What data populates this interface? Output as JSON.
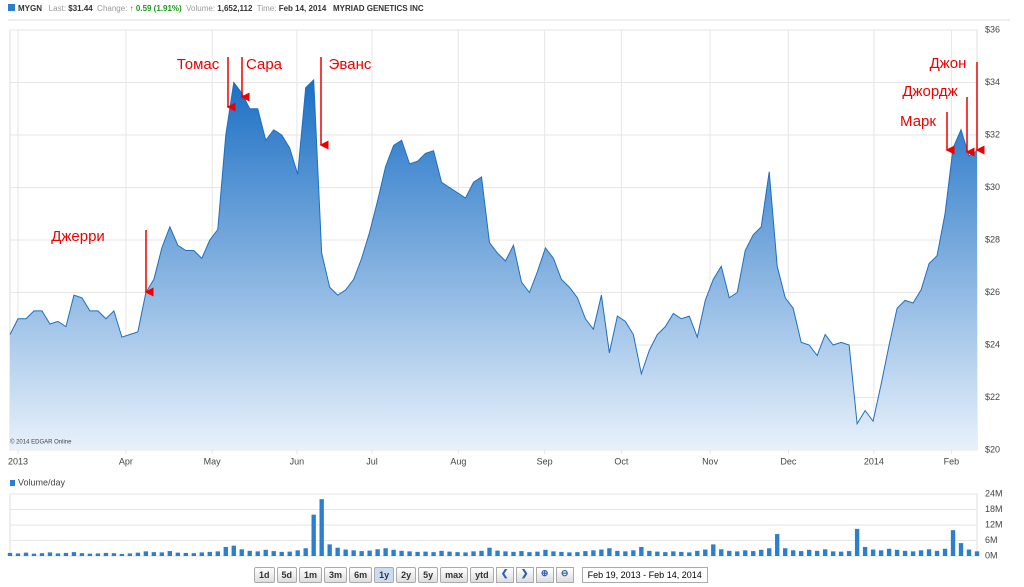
{
  "header": {
    "ticker": "MYGN",
    "last_label": "Last:",
    "last": "$31.44",
    "change_label": "Change:",
    "change": "0.59 (1.91%)",
    "volume_label": "Volume:",
    "volume": "1,652,112",
    "time_label": "Time:",
    "time": "Feb 14, 2014",
    "company": "MYRIAD GENETICS INC"
  },
  "chart_data": [
    {
      "type": "area",
      "color": "#2a7fd0",
      "xlim": [
        0,
        121
      ],
      "ylim": [
        20,
        36
      ],
      "yticks": [
        {
          "value": 20,
          "label": "$20"
        },
        {
          "value": 22,
          "label": "$22"
        },
        {
          "value": 24,
          "label": "$24"
        },
        {
          "value": 26,
          "label": "$26"
        },
        {
          "value": 28,
          "label": "$28"
        },
        {
          "value": 30,
          "label": "$30"
        },
        {
          "value": 32,
          "label": "$32"
        },
        {
          "value": 34,
          "label": "$34"
        },
        {
          "value": 36,
          "label": "$36"
        }
      ],
      "xticks": [
        {
          "value": 1,
          "label": "2013"
        },
        {
          "value": 14.5,
          "label": "Apr"
        },
        {
          "value": 25.3,
          "label": "May"
        },
        {
          "value": 35.9,
          "label": "Jun"
        },
        {
          "value": 45.3,
          "label": "Jul"
        },
        {
          "value": 56.1,
          "label": "Aug"
        },
        {
          "value": 66.9,
          "label": "Sep"
        },
        {
          "value": 76.5,
          "label": "Oct"
        },
        {
          "value": 87.6,
          "label": "Nov"
        },
        {
          "value": 97.4,
          "label": "Dec"
        },
        {
          "value": 108.1,
          "label": "2014"
        },
        {
          "value": 117.8,
          "label": "Feb"
        }
      ],
      "grid": true,
      "values": [
        24.4,
        25.0,
        25.0,
        25.3,
        25.3,
        24.8,
        24.9,
        24.7,
        25.9,
        25.8,
        25.3,
        25.3,
        25.0,
        25.3,
        24.3,
        24.4,
        24.5,
        26.0,
        26.5,
        27.7,
        28.5,
        27.8,
        27.6,
        27.6,
        27.3,
        28.0,
        28.4,
        32.0,
        34.0,
        33.6,
        33.0,
        33.0,
        31.8,
        32.2,
        32.0,
        31.5,
        30.5,
        33.8,
        34.1,
        27.5,
        26.2,
        25.9,
        26.1,
        26.5,
        27.3,
        28.3,
        29.5,
        30.8,
        31.6,
        31.8,
        30.9,
        31.0,
        31.3,
        31.4,
        30.2,
        30.0,
        29.8,
        29.6,
        30.2,
        30.4,
        27.9,
        27.5,
        27.2,
        27.8,
        26.4,
        26.0,
        26.8,
        27.7,
        27.3,
        26.5,
        26.2,
        25.8,
        25.0,
        24.6,
        25.9,
        23.7,
        25.1,
        24.9,
        24.4,
        22.9,
        23.8,
        24.4,
        24.7,
        25.2,
        25.0,
        25.1,
        24.3,
        25.7,
        26.5,
        27.0,
        25.8,
        26.0,
        27.6,
        28.2,
        28.5,
        30.6,
        27.0,
        25.8,
        25.4,
        24.1,
        24.0,
        23.6,
        24.4,
        24.0,
        24.1,
        24.0,
        21.0,
        21.5,
        21.1,
        22.5,
        24.0,
        25.4,
        25.7,
        25.6,
        26.1,
        27.1,
        27.4,
        29.0,
        31.5,
        32.2,
        31.2,
        31.4
      ],
      "annotations": [
        "Джерри",
        "Томас",
        "Сара",
        "Эванс",
        "Марк",
        "Джордж",
        "Джон"
      ],
      "source": "© 2014 EDGAR Online"
    },
    {
      "type": "bar",
      "title": "Volume/day",
      "color": "#2a7fd0",
      "xlim": [
        0,
        121
      ],
      "ylim": [
        0,
        24
      ],
      "yticks": [
        {
          "value": 0,
          "label": "0M"
        },
        {
          "value": 6,
          "label": "6M"
        },
        {
          "value": 12,
          "label": "12M"
        },
        {
          "value": 18,
          "label": "18M"
        },
        {
          "value": 24,
          "label": "24M"
        }
      ],
      "values": [
        1.2,
        1.0,
        1.3,
        0.9,
        1.1,
        1.4,
        1.0,
        1.2,
        1.5,
        1.1,
        0.9,
        1.0,
        1.2,
        1.1,
        0.8,
        1.0,
        1.3,
        1.8,
        1.5,
        1.4,
        1.9,
        1.3,
        1.2,
        1.1,
        1.4,
        1.6,
        1.8,
        3.5,
        4.0,
        2.6,
        2.0,
        1.8,
        2.4,
        1.9,
        1.6,
        1.7,
        2.2,
        3.0,
        16,
        22,
        4.5,
        3.2,
        2.5,
        2.2,
        1.9,
        2.1,
        2.6,
        3.0,
        2.4,
        2.0,
        1.8,
        1.6,
        1.7,
        1.5,
        2.0,
        1.7,
        1.5,
        1.4,
        1.8,
        2.0,
        3.2,
        2.1,
        1.8,
        1.6,
        1.9,
        1.5,
        1.7,
        2.4,
        1.8,
        1.6,
        1.4,
        1.5,
        1.9,
        2.2,
        2.5,
        3.0,
        2.0,
        1.8,
        2.2,
        3.5,
        2.0,
        1.7,
        1.5,
        1.8,
        1.6,
        1.4,
        2.0,
        2.5,
        4.5,
        2.6,
        2.0,
        1.8,
        2.2,
        1.9,
        2.4,
        3.0,
        8.5,
        3.0,
        2.2,
        1.9,
        2.4,
        2.0,
        2.6,
        1.8,
        1.7,
        1.9,
        10.5,
        3.5,
        2.5,
        2.2,
        2.8,
        2.4,
        2.0,
        1.8,
        2.2,
        2.6,
        2.0,
        2.8,
        10.0,
        5.0,
        2.5,
        1.8
      ]
    }
  ],
  "controls": {
    "buttons": [
      "1d",
      "5d",
      "1m",
      "3m",
      "6m",
      "1y",
      "2y",
      "5y",
      "max",
      "ytd"
    ],
    "range": "Feb 19, 2013 - Feb 14, 2014"
  }
}
